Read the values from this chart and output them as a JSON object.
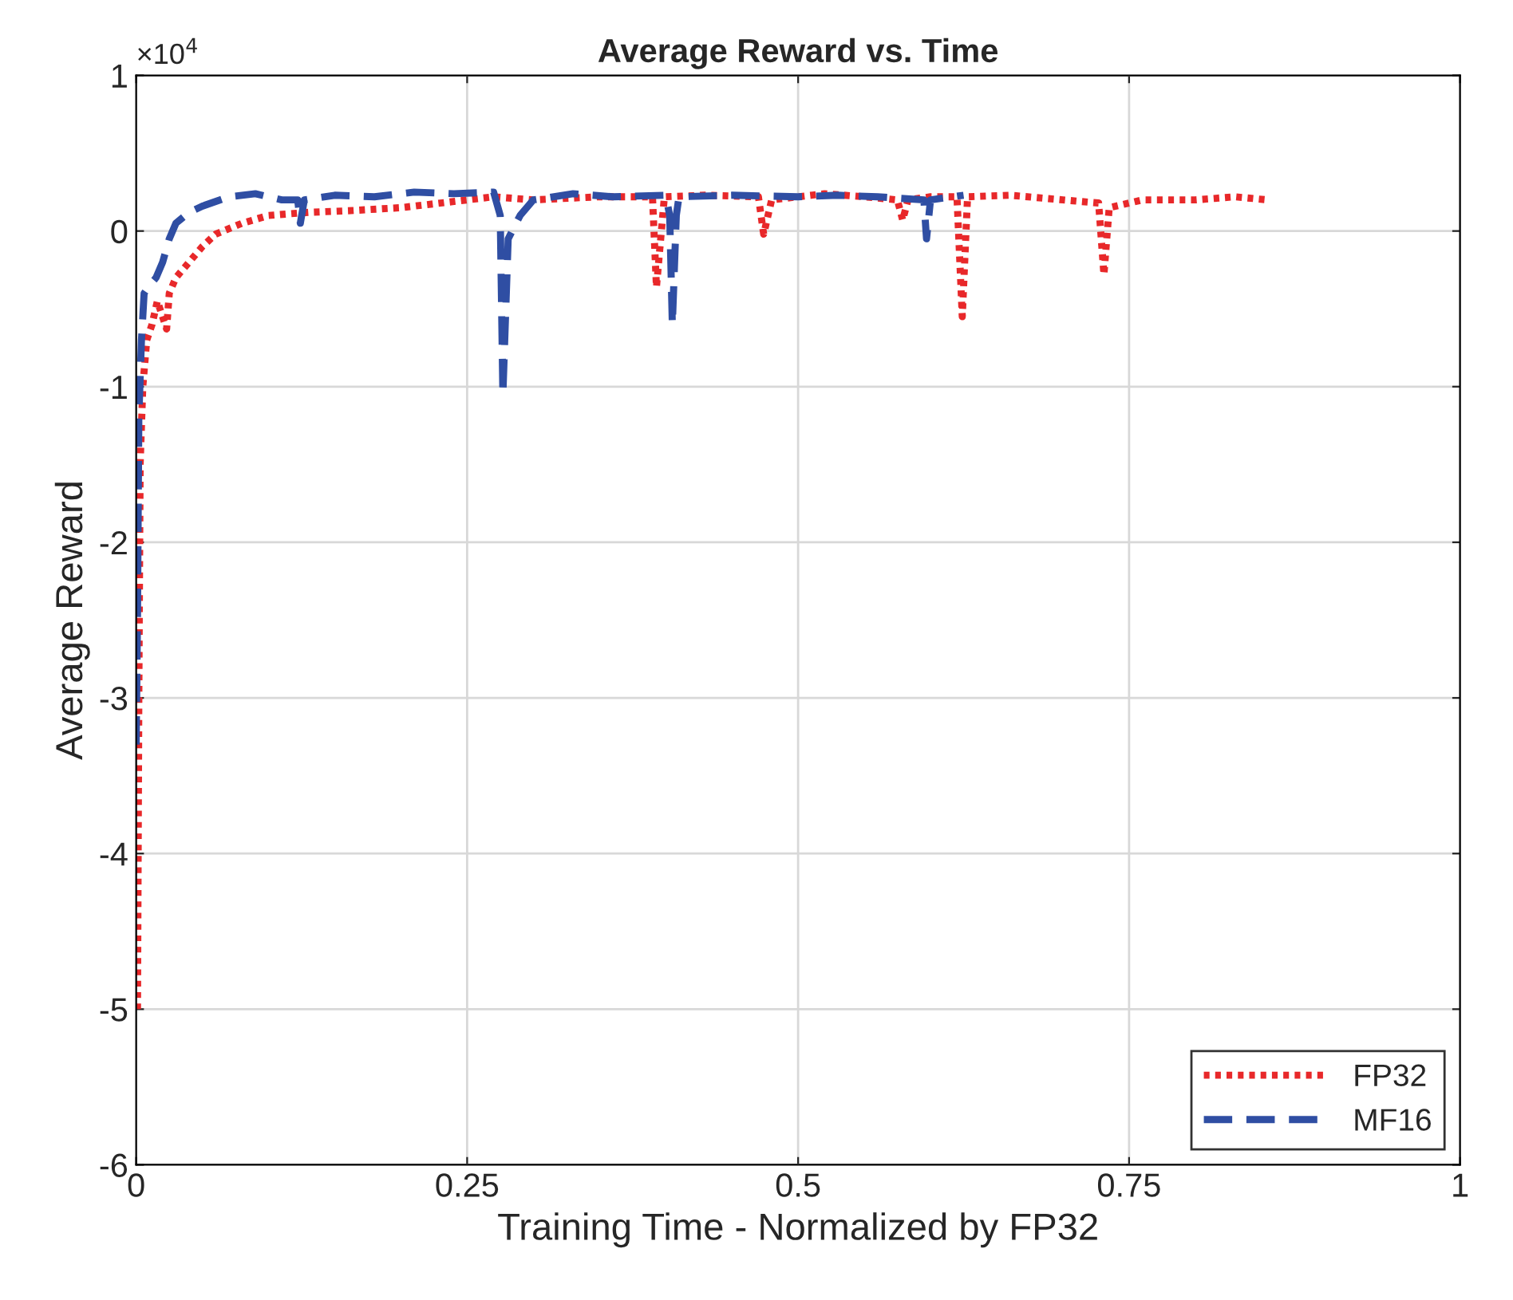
{
  "chart_data": {
    "type": "line",
    "title": "Average Reward vs. Time",
    "xlabel": "Training Time - Normalized by FP32",
    "ylabel": "Average Reward",
    "annotations": [
      "×10$^{4}$"
    ],
    "xlim": [
      0,
      1
    ],
    "xticks": [
      0,
      0.25,
      0.5,
      0.75,
      1
    ],
    "ylim": [
      -6,
      1
    ],
    "yticks": [
      -6,
      -5,
      -4,
      -3,
      -2,
      -1,
      0,
      1
    ],
    "grid": true,
    "legend": "bottom right",
    "series": [
      {
        "name": "FP32",
        "color": "#e8282a",
        "line_style": "dotted",
        "x": [
          0.001,
          0.002,
          0.003,
          0.005,
          0.008,
          0.012,
          0.016,
          0.023,
          0.025,
          0.03,
          0.04,
          0.05,
          0.06,
          0.08,
          0.1,
          0.13,
          0.16,
          0.2,
          0.25,
          0.27,
          0.3,
          0.35,
          0.39,
          0.393,
          0.399,
          0.43,
          0.47,
          0.474,
          0.48,
          0.52,
          0.55,
          0.575,
          0.579,
          0.583,
          0.6,
          0.62,
          0.624,
          0.628,
          0.66,
          0.7,
          0.727,
          0.731,
          0.735,
          0.76,
          0.8,
          0.83,
          0.855
        ],
        "values": [
          -5.0,
          -3.0,
          -1.5,
          -1.0,
          -0.7,
          -0.6,
          -0.45,
          -0.63,
          -0.4,
          -0.3,
          -0.2,
          -0.1,
          -0.02,
          0.05,
          0.1,
          0.12,
          0.13,
          0.15,
          0.2,
          0.22,
          0.2,
          0.22,
          0.22,
          -0.36,
          0.22,
          0.23,
          0.22,
          -0.02,
          0.2,
          0.24,
          0.22,
          0.2,
          0.07,
          0.2,
          0.22,
          0.22,
          -0.55,
          0.22,
          0.23,
          0.2,
          0.18,
          -0.28,
          0.15,
          0.2,
          0.2,
          0.22,
          0.2
        ]
      },
      {
        "name": "MF16",
        "color": "#2f4ea3",
        "line_style": "dashed",
        "x": [
          0.0,
          0.001,
          0.002,
          0.004,
          0.006,
          0.01,
          0.015,
          0.02,
          0.025,
          0.03,
          0.04,
          0.05,
          0.07,
          0.09,
          0.11,
          0.122,
          0.124,
          0.127,
          0.15,
          0.18,
          0.21,
          0.24,
          0.27,
          0.275,
          0.277,
          0.281,
          0.29,
          0.3,
          0.33,
          0.36,
          0.4,
          0.403,
          0.405,
          0.408,
          0.41,
          0.45,
          0.5,
          0.53,
          0.56,
          0.595,
          0.597,
          0.6,
          0.625
        ],
        "values": [
          -3.3,
          -2.5,
          -1.2,
          -0.7,
          -0.4,
          -0.35,
          -0.3,
          -0.2,
          -0.05,
          0.05,
          0.12,
          0.16,
          0.22,
          0.24,
          0.2,
          0.2,
          0.05,
          0.2,
          0.23,
          0.22,
          0.25,
          0.24,
          0.25,
          0.1,
          -1.05,
          -0.05,
          0.1,
          0.2,
          0.24,
          0.22,
          0.23,
          0.1,
          -0.6,
          0.1,
          0.22,
          0.23,
          0.22,
          0.23,
          0.22,
          0.2,
          -0.05,
          0.2,
          0.23
        ]
      }
    ]
  }
}
